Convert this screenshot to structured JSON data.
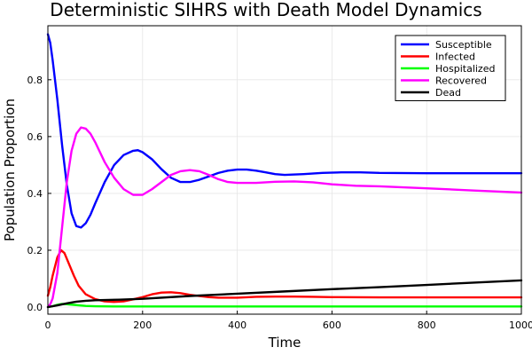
{
  "chart_data": {
    "type": "line",
    "title": "Deterministic SIHRS with Death Model Dynamics",
    "xlabel": "Time",
    "ylabel": "Population Proportion",
    "xlim": [
      0,
      1000
    ],
    "ylim": [
      -0.025,
      0.99
    ],
    "xticks": [
      0,
      200,
      400,
      600,
      800,
      1000
    ],
    "yticks": [
      0.0,
      0.2,
      0.4,
      0.6,
      0.8
    ],
    "xtick_labels": [
      "0",
      "200",
      "400",
      "600",
      "800",
      "1000"
    ],
    "ytick_labels": [
      "0.0",
      "0.2",
      "0.4",
      "0.6",
      "0.8"
    ],
    "grid": true,
    "legend_position": "top-right",
    "series": [
      {
        "name": "Susceptible",
        "color": "#0000ff",
        "points": [
          [
            0,
            0.96
          ],
          [
            5,
            0.93
          ],
          [
            10,
            0.87
          ],
          [
            20,
            0.73
          ],
          [
            30,
            0.57
          ],
          [
            40,
            0.43
          ],
          [
            50,
            0.33
          ],
          [
            60,
            0.285
          ],
          [
            70,
            0.28
          ],
          [
            80,
            0.295
          ],
          [
            90,
            0.325
          ],
          [
            100,
            0.365
          ],
          [
            120,
            0.44
          ],
          [
            140,
            0.5
          ],
          [
            160,
            0.535
          ],
          [
            180,
            0.55
          ],
          [
            190,
            0.552
          ],
          [
            200,
            0.545
          ],
          [
            220,
            0.52
          ],
          [
            240,
            0.485
          ],
          [
            260,
            0.455
          ],
          [
            280,
            0.44
          ],
          [
            300,
            0.44
          ],
          [
            320,
            0.448
          ],
          [
            340,
            0.46
          ],
          [
            360,
            0.472
          ],
          [
            380,
            0.48
          ],
          [
            400,
            0.484
          ],
          [
            420,
            0.484
          ],
          [
            440,
            0.48
          ],
          [
            460,
            0.474
          ],
          [
            480,
            0.468
          ],
          [
            500,
            0.465
          ],
          [
            540,
            0.468
          ],
          [
            580,
            0.472
          ],
          [
            620,
            0.474
          ],
          [
            660,
            0.474
          ],
          [
            700,
            0.472
          ],
          [
            800,
            0.471
          ],
          [
            900,
            0.471
          ],
          [
            1000,
            0.471
          ]
        ]
      },
      {
        "name": "Infected",
        "color": "#ff0000",
        "points": [
          [
            0,
            0.04
          ],
          [
            5,
            0.07
          ],
          [
            10,
            0.11
          ],
          [
            20,
            0.175
          ],
          [
            28,
            0.2
          ],
          [
            35,
            0.19
          ],
          [
            45,
            0.15
          ],
          [
            55,
            0.11
          ],
          [
            65,
            0.075
          ],
          [
            80,
            0.045
          ],
          [
            100,
            0.028
          ],
          [
            120,
            0.02
          ],
          [
            140,
            0.018
          ],
          [
            160,
            0.02
          ],
          [
            180,
            0.027
          ],
          [
            200,
            0.035
          ],
          [
            220,
            0.045
          ],
          [
            240,
            0.051
          ],
          [
            260,
            0.052
          ],
          [
            280,
            0.049
          ],
          [
            300,
            0.043
          ],
          [
            320,
            0.039
          ],
          [
            340,
            0.035
          ],
          [
            360,
            0.033
          ],
          [
            400,
            0.033
          ],
          [
            440,
            0.036
          ],
          [
            480,
            0.037
          ],
          [
            520,
            0.037
          ],
          [
            560,
            0.036
          ],
          [
            600,
            0.035
          ],
          [
            700,
            0.034
          ],
          [
            800,
            0.034
          ],
          [
            900,
            0.034
          ],
          [
            1000,
            0.034
          ]
        ]
      },
      {
        "name": "Hospitalized",
        "color": "#00ff00",
        "points": [
          [
            0,
            0.0
          ],
          [
            10,
            0.003
          ],
          [
            20,
            0.008
          ],
          [
            30,
            0.011
          ],
          [
            40,
            0.01
          ],
          [
            60,
            0.007
          ],
          [
            80,
            0.004
          ],
          [
            100,
            0.003
          ],
          [
            150,
            0.002
          ],
          [
            200,
            0.002
          ],
          [
            300,
            0.002
          ],
          [
            400,
            0.002
          ],
          [
            500,
            0.002
          ],
          [
            600,
            0.002
          ],
          [
            800,
            0.002
          ],
          [
            1000,
            0.002
          ]
        ]
      },
      {
        "name": "Recovered",
        "color": "#ff00ff",
        "points": [
          [
            0,
            0.0
          ],
          [
            5,
            0.01
          ],
          [
            10,
            0.03
          ],
          [
            20,
            0.12
          ],
          [
            30,
            0.28
          ],
          [
            40,
            0.44
          ],
          [
            50,
            0.55
          ],
          [
            60,
            0.61
          ],
          [
            70,
            0.632
          ],
          [
            80,
            0.628
          ],
          [
            90,
            0.61
          ],
          [
            100,
            0.58
          ],
          [
            120,
            0.51
          ],
          [
            140,
            0.455
          ],
          [
            160,
            0.415
          ],
          [
            180,
            0.395
          ],
          [
            200,
            0.395
          ],
          [
            220,
            0.415
          ],
          [
            240,
            0.44
          ],
          [
            260,
            0.465
          ],
          [
            280,
            0.478
          ],
          [
            300,
            0.482
          ],
          [
            320,
            0.478
          ],
          [
            340,
            0.465
          ],
          [
            360,
            0.45
          ],
          [
            380,
            0.44
          ],
          [
            400,
            0.437
          ],
          [
            440,
            0.437
          ],
          [
            480,
            0.441
          ],
          [
            520,
            0.442
          ],
          [
            560,
            0.439
          ],
          [
            600,
            0.432
          ],
          [
            650,
            0.427
          ],
          [
            700,
            0.425
          ],
          [
            800,
            0.418
          ],
          [
            900,
            0.41
          ],
          [
            1000,
            0.403
          ]
        ]
      },
      {
        "name": "Dead",
        "color": "#000000",
        "points": [
          [
            0,
            0.0
          ],
          [
            20,
            0.006
          ],
          [
            40,
            0.013
          ],
          [
            60,
            0.019
          ],
          [
            80,
            0.022
          ],
          [
            100,
            0.024
          ],
          [
            150,
            0.026
          ],
          [
            200,
            0.029
          ],
          [
            300,
            0.039
          ],
          [
            400,
            0.047
          ],
          [
            500,
            0.055
          ],
          [
            600,
            0.063
          ],
          [
            700,
            0.07
          ],
          [
            800,
            0.078
          ],
          [
            900,
            0.086
          ],
          [
            1000,
            0.094
          ]
        ]
      }
    ]
  }
}
